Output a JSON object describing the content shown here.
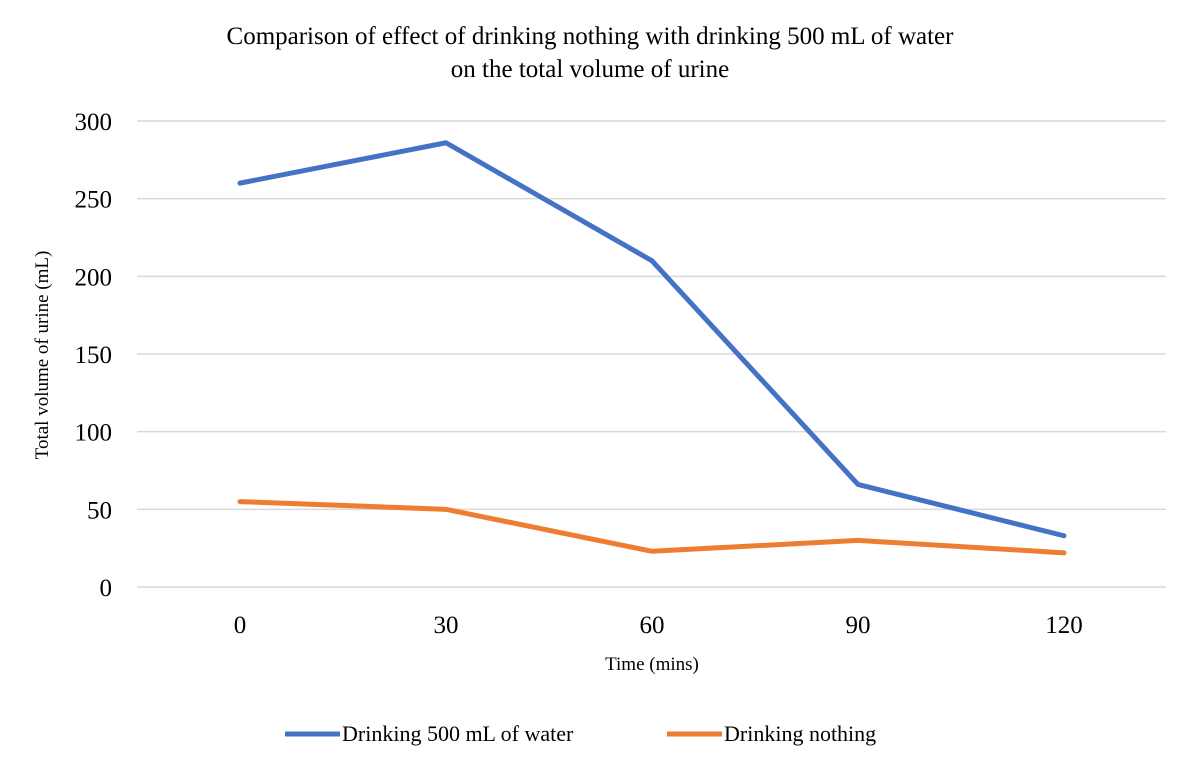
{
  "chart_data": {
    "type": "line",
    "title": [
      "Comparison of effect of drinking nothing with drinking 500 mL of water",
      "on the total volume of urine"
    ],
    "xlabel": "Time (mins)",
    "ylabel": "Total volume of urine (mL)",
    "categories": [
      "0",
      "30",
      "60",
      "90",
      "120"
    ],
    "ylim": [
      0,
      300
    ],
    "yticks": [
      0,
      50,
      100,
      150,
      200,
      250,
      300
    ],
    "grid": true,
    "legend_placement": "bottom",
    "series": [
      {
        "name": "Drinking 500 mL of water",
        "color": "#4472C4",
        "values": [
          260,
          286,
          210,
          66,
          33
        ]
      },
      {
        "name": "Drinking nothing",
        "color": "#ED7D31",
        "values": [
          55,
          50,
          23,
          30,
          22
        ]
      }
    ]
  }
}
